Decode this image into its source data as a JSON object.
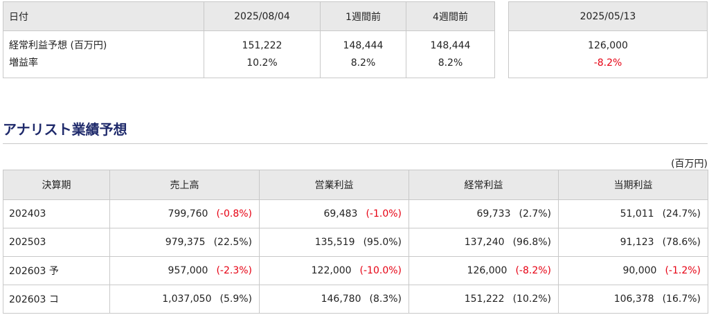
{
  "consensus": {
    "headers": [
      "日付",
      "2025/08/04",
      "1週間前",
      "4週間前"
    ],
    "row_labels": [
      "経常利益予想 (百万円)",
      "増益率"
    ],
    "columns": [
      {
        "value": "151,222",
        "rate": "10.2%"
      },
      {
        "value": "148,444",
        "rate": "8.2%"
      },
      {
        "value": "148,444",
        "rate": "8.2%"
      }
    ]
  },
  "previous": {
    "header": "2025/05/13",
    "value": "126,000",
    "rate": "-8.2%"
  },
  "analyst": {
    "heading": "アナリスト業績予想",
    "unit": "(百万円)",
    "headers": [
      "決算期",
      "売上高",
      "営業利益",
      "経常利益",
      "当期利益"
    ],
    "rows": [
      {
        "period": "202403",
        "sales": "799,760",
        "sales_pct": "(-0.8%)",
        "op": "69,483",
        "op_pct": "(-1.0%)",
        "ord": "69,733",
        "ord_pct": "(2.7%)",
        "net": "51,011",
        "net_pct": "(24.7%)"
      },
      {
        "period": "202503",
        "sales": "979,375",
        "sales_pct": "(22.5%)",
        "op": "135,519",
        "op_pct": "(95.0%)",
        "ord": "137,240",
        "ord_pct": "(96.8%)",
        "net": "91,123",
        "net_pct": "(78.6%)"
      },
      {
        "period": "202603 予",
        "sales": "957,000",
        "sales_pct": "(-2.3%)",
        "op": "122,000",
        "op_pct": "(-10.0%)",
        "ord": "126,000",
        "ord_pct": "(-8.2%)",
        "net": "90,000",
        "net_pct": "(-1.2%)"
      },
      {
        "period": "202603 コ",
        "sales": "1,037,050",
        "sales_pct": "(5.9%)",
        "op": "146,780",
        "op_pct": "(8.3%)",
        "ord": "151,222",
        "ord_pct": "(10.2%)",
        "net": "106,378",
        "net_pct": "(16.7%)"
      }
    ]
  },
  "colors": {
    "negative": "#e60012",
    "heading": "#1f2a6b",
    "header_bg": "#e9e9e9"
  }
}
